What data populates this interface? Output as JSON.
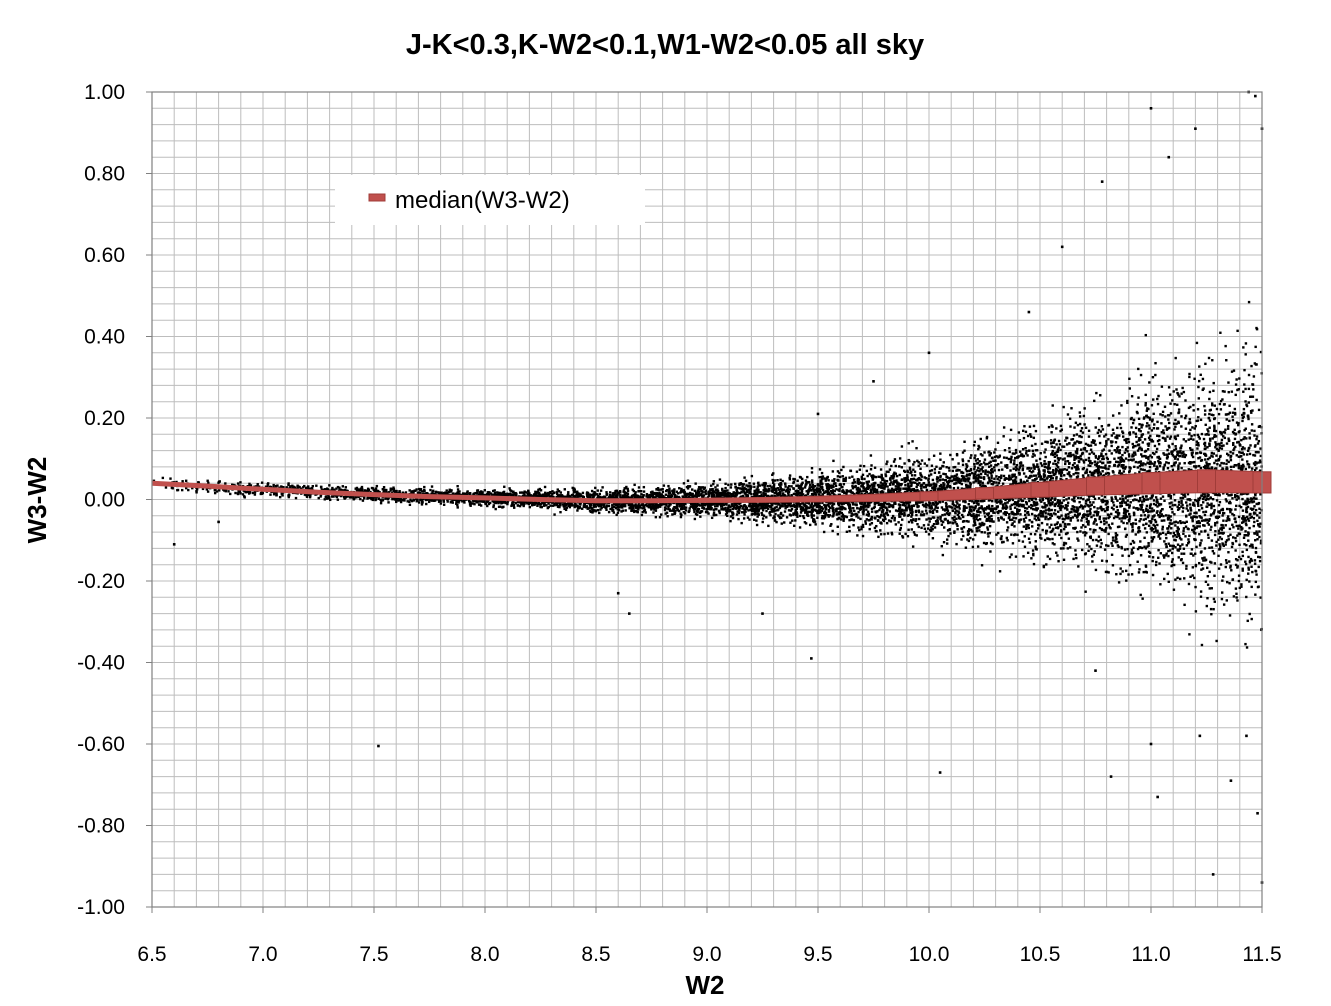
{
  "colors": {
    "background": "#ffffff",
    "grid": "#bdbdbd",
    "axis": "#808080",
    "points": "#000000",
    "median": "#c0504d",
    "median_edge": "#a13c39"
  },
  "chart_data": {
    "type": "scatter",
    "title": "J-K<0.3,K-W2<0.1,W1-W2<0.05 all sky",
    "xlabel": "W2",
    "ylabel": "W3-W2",
    "xlim": [
      6.5,
      11.5
    ],
    "ylim": [
      -1.0,
      1.0
    ],
    "x_ticks": [
      "6.5",
      "7.0",
      "7.5",
      "8.0",
      "8.5",
      "9.0",
      "9.5",
      "10.0",
      "10.5",
      "11.0",
      "11.5"
    ],
    "y_ticks": [
      "1.00",
      "0.80",
      "0.60",
      "0.40",
      "0.20",
      "0.00",
      "-0.20",
      "-0.40",
      "-0.60",
      "-0.80",
      "-1.00"
    ],
    "grid": true,
    "legend": {
      "position": "top-left",
      "entries": [
        "median(W3-W2)"
      ]
    },
    "series": [
      {
        "name": "median(W3-W2)",
        "kind": "line",
        "x": [
          6.5,
          6.75,
          7.0,
          7.25,
          7.5,
          7.75,
          8.0,
          8.25,
          8.5,
          8.75,
          9.0,
          9.25,
          9.5,
          9.75,
          10.0,
          10.25,
          10.5,
          10.75,
          11.0,
          11.25,
          11.5
        ],
        "y": [
          0.04,
          0.033,
          0.025,
          0.018,
          0.012,
          0.007,
          0.004,
          0.0,
          -0.003,
          -0.003,
          -0.002,
          -0.001,
          0.001,
          0.004,
          0.008,
          0.015,
          0.024,
          0.033,
          0.04,
          0.045,
          0.042
        ],
        "spread": [
          0.004,
          0.004,
          0.004,
          0.004,
          0.004,
          0.004,
          0.004,
          0.004,
          0.004,
          0.004,
          0.005,
          0.006,
          0.007,
          0.009,
          0.011,
          0.014,
          0.018,
          0.022,
          0.026,
          0.028,
          0.026
        ]
      },
      {
        "name": "W3-W2",
        "kind": "scatter",
        "description_x_range": [
          6.5,
          11.5
        ],
        "center": [
          [
            6.5,
            0.04
          ],
          [
            7.0,
            0.025
          ],
          [
            7.5,
            0.012
          ],
          [
            8.0,
            0.004
          ],
          [
            8.5,
            -0.003
          ],
          [
            9.0,
            -0.002
          ],
          [
            9.5,
            0.001
          ],
          [
            10.0,
            0.008
          ],
          [
            10.5,
            0.024
          ],
          [
            11.0,
            0.04
          ],
          [
            11.5,
            0.042
          ]
        ],
        "scatter_width": [
          [
            6.5,
            0.012
          ],
          [
            7.0,
            0.012
          ],
          [
            7.5,
            0.013
          ],
          [
            8.0,
            0.015
          ],
          [
            8.5,
            0.02
          ],
          [
            9.0,
            0.028
          ],
          [
            9.5,
            0.045
          ],
          [
            10.0,
            0.07
          ],
          [
            10.5,
            0.11
          ],
          [
            11.0,
            0.17
          ],
          [
            11.5,
            0.25
          ]
        ],
        "outliers": [
          [
            6.6,
            -0.11
          ],
          [
            6.8,
            -0.055
          ],
          [
            7.52,
            -0.605
          ],
          [
            8.65,
            -0.28
          ],
          [
            8.6,
            -0.23
          ],
          [
            9.25,
            -0.28
          ],
          [
            9.47,
            -0.39
          ],
          [
            10.05,
            -0.67
          ],
          [
            10.82,
            -0.68
          ],
          [
            10.75,
            -0.42
          ],
          [
            11.0,
            -0.6
          ],
          [
            11.03,
            -0.73
          ],
          [
            11.28,
            -0.92
          ],
          [
            11.22,
            -0.58
          ],
          [
            11.36,
            -0.69
          ],
          [
            11.43,
            -0.58
          ],
          [
            11.5,
            -0.94
          ],
          [
            11.48,
            -0.77
          ],
          [
            11.5,
            0.91
          ],
          [
            11.47,
            0.99
          ],
          [
            11.0,
            0.96
          ],
          [
            11.08,
            0.84
          ],
          [
            11.2,
            0.91
          ],
          [
            10.78,
            0.78
          ],
          [
            10.6,
            0.62
          ],
          [
            10.45,
            0.46
          ],
          [
            10.0,
            0.36
          ],
          [
            9.75,
            0.29
          ],
          [
            9.5,
            0.21
          ],
          [
            11.44,
            1.0
          ]
        ]
      }
    ]
  }
}
